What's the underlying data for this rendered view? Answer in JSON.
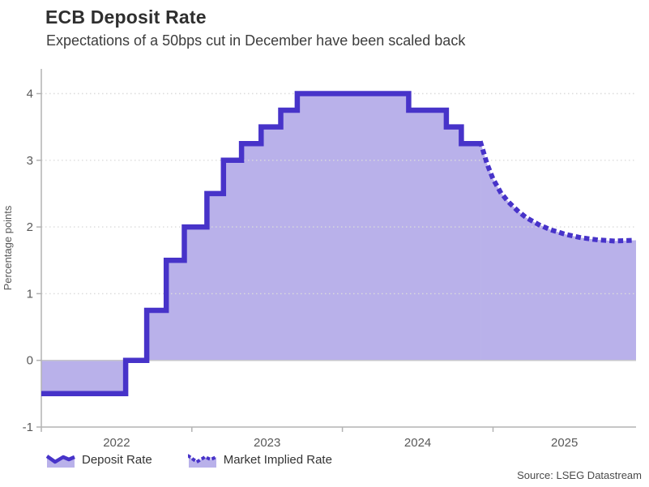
{
  "chart_data": {
    "type": "line",
    "title": "ECB Deposit Rate",
    "subtitle": "Expectations of a 50bps cut in December have been scaled back",
    "ylabel": "Percentage points",
    "xlabel": "",
    "source": "Source: LSEG Datastream",
    "x_domain": [
      2022.0,
      2025.95
    ],
    "y_domain": [
      -1,
      4.37
    ],
    "x_ticks": [
      {
        "year": 2022,
        "label": "2022"
      },
      {
        "year": 2023,
        "label": "2023"
      },
      {
        "year": 2024,
        "label": "2024"
      },
      {
        "year": 2025,
        "label": "2025"
      }
    ],
    "y_ticks": [
      {
        "value": -1,
        "label": "-1"
      },
      {
        "value": 0,
        "label": "0"
      },
      {
        "value": 1,
        "label": "1"
      },
      {
        "value": 2,
        "label": "2"
      },
      {
        "value": 3,
        "label": "3"
      },
      {
        "value": 4,
        "label": "4"
      }
    ],
    "grid": "horizontal dotted lines at integer values, solid light zero line, no vertical grid",
    "legend_position": "bottom-left",
    "series": [
      {
        "name": "Deposit Rate",
        "render": "step-area",
        "line_style": "solid",
        "points": [
          [
            2022.0,
            -0.5
          ],
          [
            2022.56,
            0.0
          ],
          [
            2022.7,
            0.75
          ],
          [
            2022.83,
            1.5
          ],
          [
            2022.95,
            2.0
          ],
          [
            2023.1,
            2.5
          ],
          [
            2023.21,
            3.0
          ],
          [
            2023.33,
            3.25
          ],
          [
            2023.46,
            3.5
          ],
          [
            2023.59,
            3.75
          ],
          [
            2023.7,
            4.0
          ],
          [
            2024.44,
            3.75
          ],
          [
            2024.69,
            3.5
          ],
          [
            2024.79,
            3.25
          ],
          [
            2024.92,
            3.25
          ]
        ]
      },
      {
        "name": "Market Implied Rate",
        "render": "smooth-area",
        "line_style": "dotted",
        "points": [
          [
            2024.92,
            3.25
          ],
          [
            2024.96,
            2.95
          ],
          [
            2025.0,
            2.72
          ],
          [
            2025.05,
            2.52
          ],
          [
            2025.1,
            2.38
          ],
          [
            2025.16,
            2.25
          ],
          [
            2025.22,
            2.14
          ],
          [
            2025.3,
            2.04
          ],
          [
            2025.38,
            1.96
          ],
          [
            2025.48,
            1.89
          ],
          [
            2025.58,
            1.84
          ],
          [
            2025.68,
            1.81
          ],
          [
            2025.8,
            1.79
          ],
          [
            2025.95,
            1.8
          ]
        ]
      }
    ],
    "colors": {
      "line": "#4733c9",
      "fill": "rgba(71,51,201,0.38)",
      "grid": "#dbdbdb",
      "zero_line": "#c6c6cb",
      "axis": "#b3b3b3",
      "tick_text": "#595959",
      "title_text": "#2f2f2f",
      "subtitle_text": "#3d3d3d",
      "source_text": "#4a4a4a"
    }
  }
}
